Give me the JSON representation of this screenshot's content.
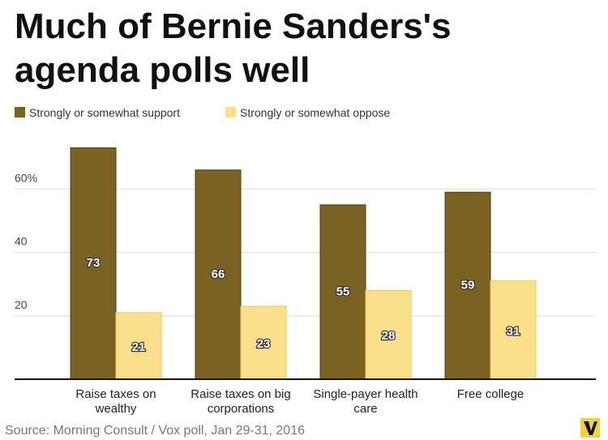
{
  "chart_data": {
    "type": "bar",
    "title": "Much of Bernie Sanders's agenda polls well",
    "source": "Source: Morning Consult / Vox poll, Jan 29-31, 2016",
    "categories": [
      "Raise taxes on wealthy",
      "Raise taxes on big corporations",
      "Single-payer health care",
      "Free college"
    ],
    "series": [
      {
        "name": "Strongly or somewhat support",
        "color": "#7a6322",
        "values": [
          73,
          66,
          55,
          59
        ]
      },
      {
        "name": "Strongly or somewhat oppose",
        "color": "#fbe08c",
        "values": [
          21,
          23,
          28,
          31
        ]
      }
    ],
    "ylim": [
      0,
      80
    ],
    "yticks": [
      20,
      40,
      {
        "value": 60,
        "label": "60%"
      }
    ],
    "grid": true
  }
}
